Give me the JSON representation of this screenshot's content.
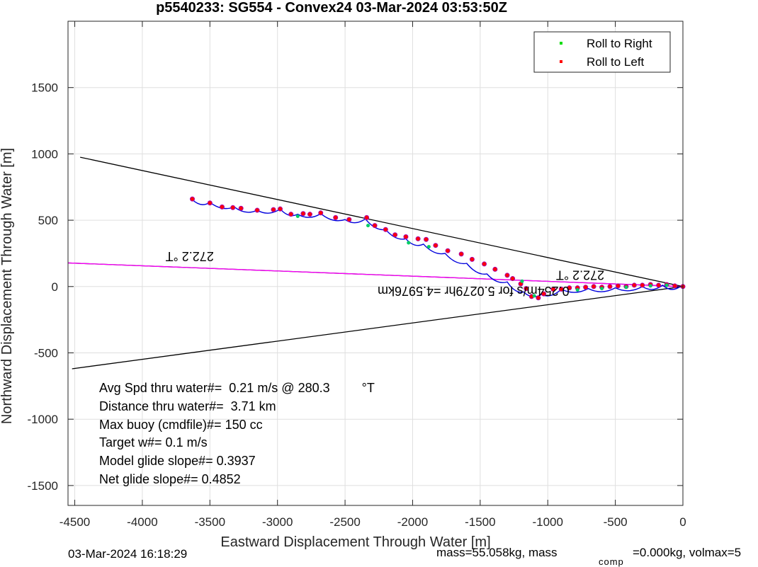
{
  "chart_data": {
    "type": "line",
    "title": "p5540233: SG554 - Convex24 03-Mar-2024 03:53:50Z",
    "xlabel": "Eastward Displacement Through Water [m]",
    "ylabel": "Northward Displacement Through Water [m]",
    "xlim": [
      -4550,
      0
    ],
    "ylim": [
      -1650,
      2000
    ],
    "xticks": [
      -4500,
      -4000,
      -3500,
      -3000,
      -2500,
      -2000,
      -1500,
      -1000,
      -500,
      0
    ],
    "xtick_labels": [
      "-4500",
      "-4000",
      "-3500",
      "-3000",
      "-2500",
      "-2000",
      "-1500",
      "-1000",
      "-500",
      "0"
    ],
    "yticks": [
      -1500,
      -1000,
      -500,
      0,
      500,
      1000,
      1500
    ],
    "ytick_labels": [
      "-1500",
      "-1000",
      "-500",
      "0",
      "500",
      "1000",
      "1500"
    ],
    "grid": true,
    "legend_placement": "top-right",
    "legend": [
      {
        "label": "Roll to Right",
        "color": "#00dd00"
      },
      {
        "label": "Roll to Left",
        "color": "#ff0000"
      }
    ],
    "lines": {
      "upper_cone": {
        "color": "#000000",
        "x": [
          -4460,
          0
        ],
        "y": [
          975,
          0
        ]
      },
      "lower_cone": {
        "color": "#000000",
        "x": [
          -4520,
          0
        ],
        "y": [
          -620,
          0
        ]
      },
      "heading_black": {
        "color": "#000000",
        "x": [
          -4550,
          0
        ],
        "y": [
          178,
          0
        ]
      },
      "heading_magenta": {
        "color": "#ff00ff",
        "x": [
          -4550,
          0
        ],
        "y": [
          178,
          0
        ]
      }
    },
    "track": {
      "color": "#0000dd",
      "x": [
        -3630,
        -3500,
        -3320,
        -3150,
        -2980,
        -2850,
        -2680,
        -2500,
        -2350,
        -2200,
        -2050,
        -1920,
        -1760,
        -1600,
        -1450,
        -1300,
        -1180,
        -1050,
        -900,
        -700,
        -500,
        -300,
        -150,
        -20
      ],
      "y": [
        655,
        635,
        600,
        575,
        585,
        545,
        550,
        505,
        510,
        430,
        360,
        320,
        250,
        175,
        95,
        35,
        -40,
        -60,
        -20,
        -15,
        -10,
        0,
        10,
        0
      ]
    },
    "dive_points": {
      "x": [
        -3630,
        -3500,
        -3410,
        -3330,
        -3270,
        -3150,
        -3030,
        -2980,
        -2900,
        -2810,
        -2760,
        -2680,
        -2570,
        -2470,
        -2340,
        -2280,
        -2200,
        -2130,
        -2050,
        -1960,
        -1900,
        -1830,
        -1740,
        -1640,
        -1560,
        -1470,
        -1390,
        -1300,
        -1260,
        -1200,
        -1160,
        -1120,
        -1070,
        -1030,
        -960,
        -900,
        -840,
        -780,
        -720,
        -660,
        -600,
        -540,
        -480,
        -420,
        -360,
        -300,
        -240,
        -180,
        -120,
        -60,
        0
      ],
      "y": [
        660,
        630,
        600,
        595,
        590,
        575,
        580,
        585,
        545,
        550,
        545,
        555,
        520,
        505,
        520,
        460,
        430,
        390,
        375,
        360,
        355,
        310,
        270,
        245,
        205,
        170,
        130,
        85,
        60,
        20,
        -15,
        -75,
        -85,
        -55,
        -20,
        -20,
        -10,
        -10,
        -5,
        0,
        -5,
        0,
        5,
        0,
        10,
        10,
        15,
        10,
        15,
        5,
        0
      ]
    },
    "right_points": {
      "x": [
        -2850,
        -2330,
        -2030,
        -1880,
        -1190,
        -1100,
        -780,
        -600,
        -420,
        -240,
        -120
      ],
      "y": [
        530,
        460,
        330,
        300,
        40,
        -70,
        -25,
        -15,
        -5,
        5,
        10
      ]
    },
    "annotations": {
      "heading_label_far": {
        "text": "272.2 °T",
        "x": -3650,
        "y": 260
      },
      "heading_label_near": {
        "text": "272.2 °T",
        "x": -760,
        "y": 120
      },
      "current_label": {
        "text": "0.254m/s for 5.0279hr =4.5976km",
        "x": -1550,
        "y": 0
      }
    },
    "stats": [
      "Avg Spd thru water#=  0.21 m/s @ 280.3         °T",
      "Distance thru water#=  3.71 km",
      "Max buoy (cmdfile)#= 150 cc",
      "Target w#= 0.1 m/s",
      "Model glide slope#= 0.3937",
      "Net glide slope#= 0.4852"
    ]
  },
  "footer": {
    "timestamp": "03-Mar-2024 16:18:29",
    "mass_text": "mass=55.058kg, mass",
    "comp_subscript": "comp",
    "volmax_text": "=0.000kg, volmax=5"
  }
}
